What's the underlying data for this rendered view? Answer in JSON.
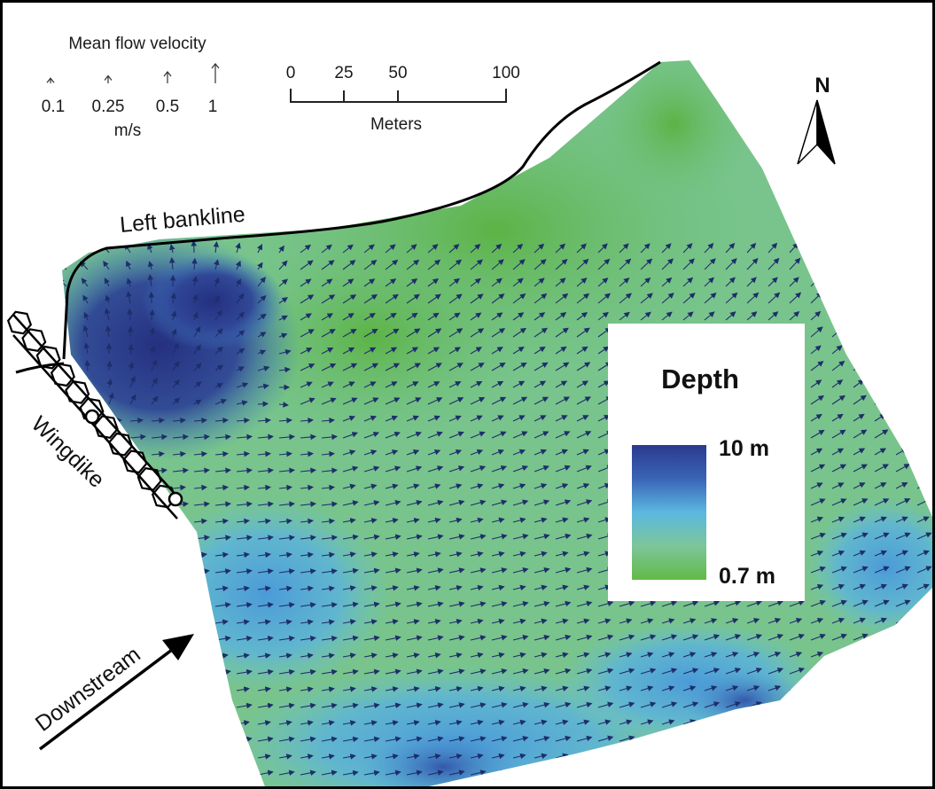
{
  "velocity_legend": {
    "title": "Mean flow velocity",
    "labels": [
      "0.1",
      "0.25",
      "0.5",
      "1"
    ],
    "values": [
      0.1,
      0.25,
      0.5,
      1
    ],
    "unit": "m/s"
  },
  "scale_bar": {
    "ticks": [
      "0",
      "25",
      "50",
      "100"
    ],
    "tick_values": [
      0,
      25,
      50,
      100
    ],
    "unit": "Meters"
  },
  "north_arrow": {
    "label": "N"
  },
  "labels": {
    "left_bankline": "Left bankline",
    "wingdike": "Wingdike",
    "downstream": "Downstream"
  },
  "depth_legend": {
    "title": "Depth",
    "max_label": "10 m",
    "min_label": "0.7 m",
    "max_value": 10,
    "min_value": 0.7,
    "unit": "m",
    "color_max": "#2b3a8e",
    "color_mid": "#5bb8e0",
    "color_min": "#63b947"
  },
  "colors": {
    "frame": "#000000",
    "deep": "#2b3a8e",
    "shallow": "#63b947",
    "arrow": "#1e2e6a"
  }
}
